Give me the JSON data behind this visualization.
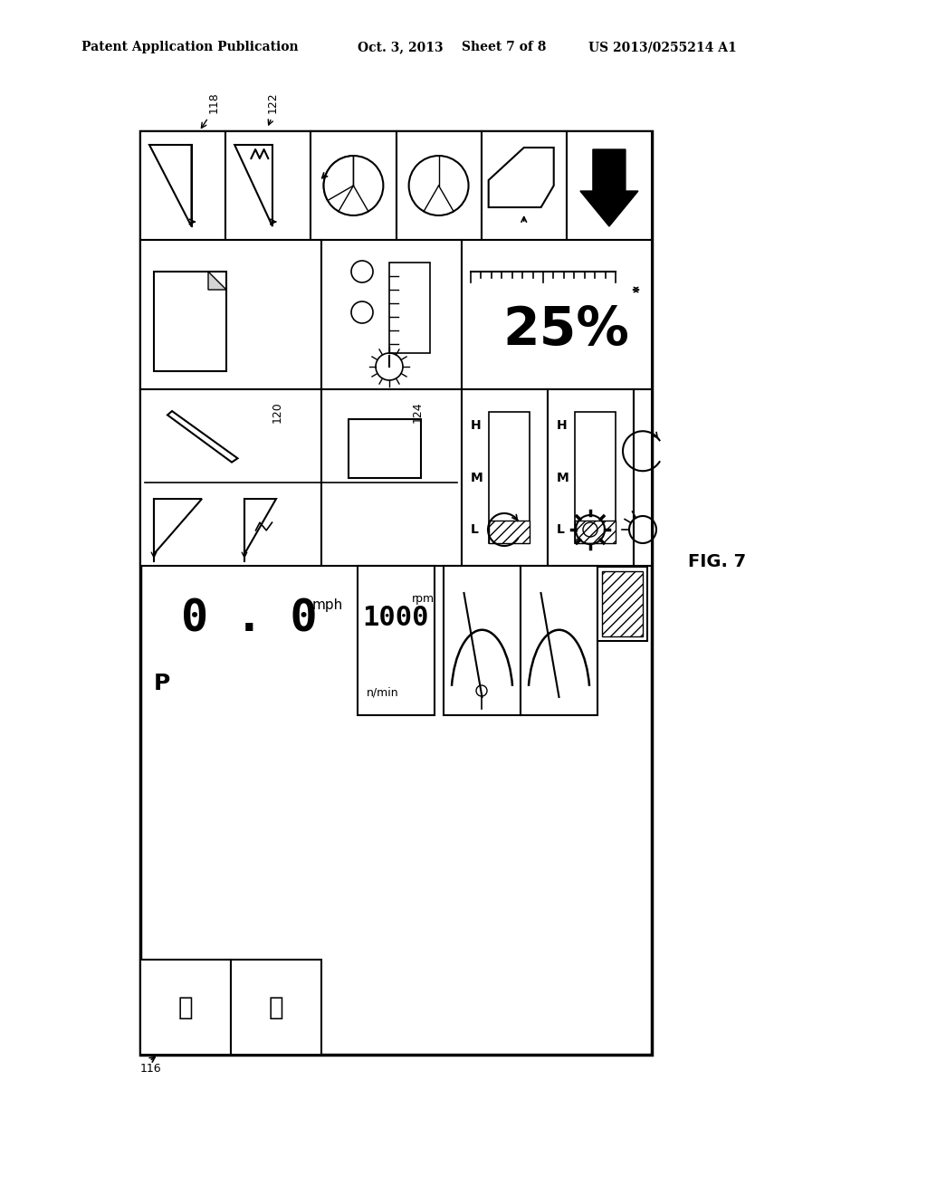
{
  "bg_color": "#ffffff",
  "text_color": "#000000",
  "header_text": "Patent Application Publication",
  "header_date": "Oct. 3, 2013",
  "header_sheet": "Sheet 7 of 8",
  "header_patent": "US 2013/0255214 A1",
  "fig_label": "FIG. 7",
  "label_116": "116",
  "label_118": "118",
  "label_122": "122",
  "label_120": "120",
  "label_124": "124",
  "percent_25": "25%",
  "speed_text": "0 . 0",
  "mph_text": "mph",
  "rpm_val": "1000",
  "rpm_text": "rpm",
  "gear_p": "P",
  "n_min": "n/min",
  "h_label": "H",
  "m_label": "M",
  "l_label": "L"
}
